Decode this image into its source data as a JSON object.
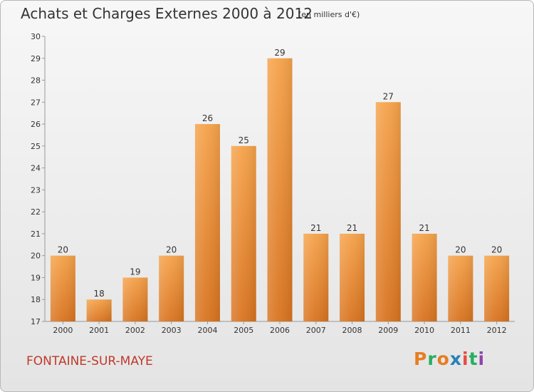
{
  "header": {
    "title": "Achats et Charges Externes 2000 à 2012",
    "subtitle": "(en milliers d'€)"
  },
  "footer": {
    "commune": "FONTAINE-SUR-MAYE",
    "logo_text": "Proxiti",
    "logo_colors": [
      "#e67e22",
      "#27ae60",
      "#e67e22",
      "#2980b9",
      "#e74c3c",
      "#27ae60",
      "#8e44ad"
    ]
  },
  "chart_data": {
    "type": "bar",
    "title": "Achats et Charges Externes 2000 à 2012",
    "subtitle": "(en milliers d'€)",
    "xlabel": "",
    "ylabel": "",
    "categories": [
      "2000",
      "2001",
      "2002",
      "2003",
      "2004",
      "2005",
      "2006",
      "2007",
      "2008",
      "2009",
      "2010",
      "2011",
      "2012"
    ],
    "values": [
      20,
      18,
      19,
      20,
      26,
      25,
      29,
      21,
      21,
      27,
      21,
      20,
      20
    ],
    "ylim": [
      17,
      30
    ],
    "yticks": [
      17,
      18,
      19,
      20,
      21,
      22,
      23,
      24,
      25,
      26,
      27,
      28,
      29,
      30
    ],
    "grid": false,
    "bar_color_top": "#f5a24a",
    "bar_color_bottom": "#d8731f"
  }
}
